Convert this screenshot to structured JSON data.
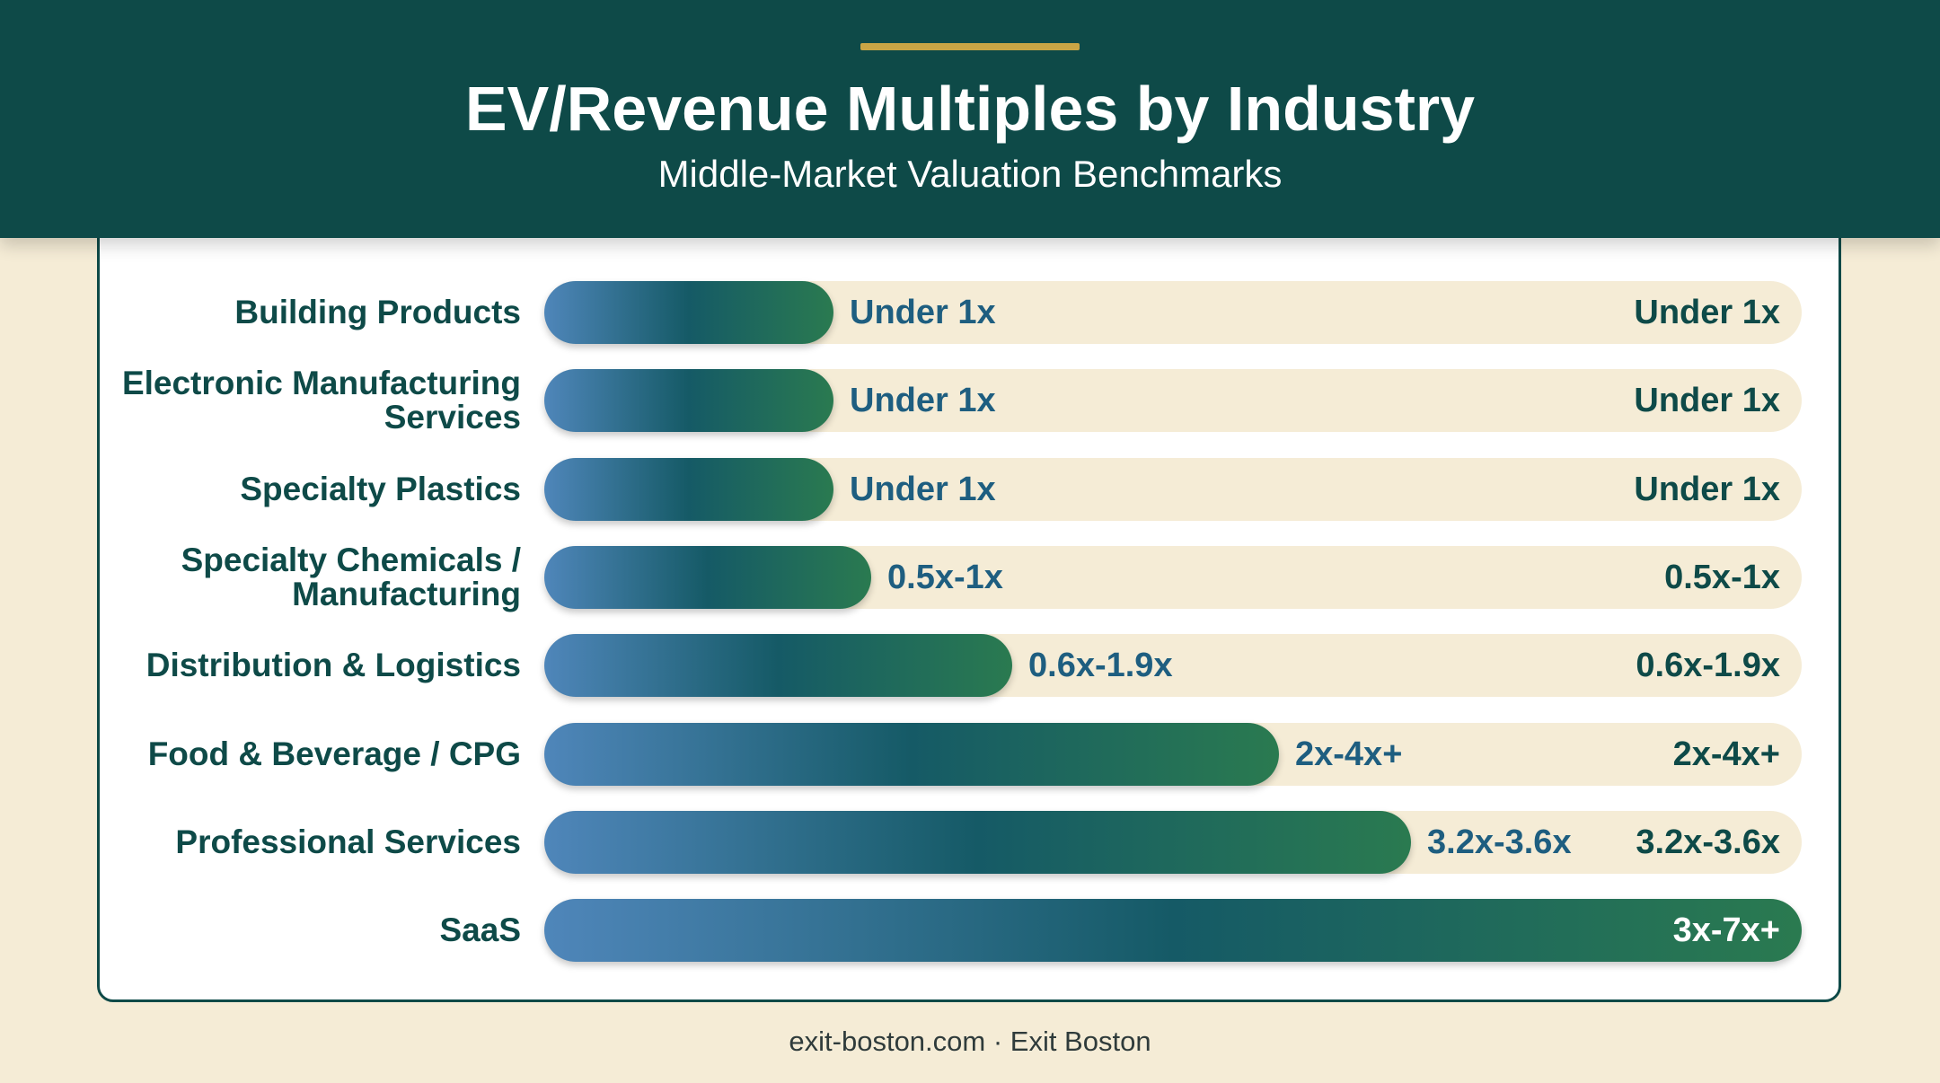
{
  "header": {
    "title": "EV/Revenue Multiples by Industry",
    "subtitle": "Middle-Market Valuation Benchmarks"
  },
  "colors": {
    "header_bg": "#0e4a48",
    "accent": "#c9a545",
    "background": "#f5ecd6",
    "bar_gradient": [
      "#4f86ba",
      "#155a66",
      "#2a7a50"
    ]
  },
  "chart_data": {
    "type": "bar",
    "orientation": "horizontal",
    "title": "EV/Revenue Multiples by Industry",
    "subtitle": "Middle-Market Valuation Benchmarks",
    "categories": [
      "Building Products",
      "Electronic Manufacturing Services",
      "Specialty Plastics",
      "Specialty Chemicals / Manufacturing",
      "Distribution & Logistics",
      "Food & Beverage / CPG",
      "Professional Services",
      "SaaS"
    ],
    "rows": [
      {
        "label": "Building Products",
        "display_label": [
          "Building Products"
        ],
        "range": "Under 1x",
        "fill_fraction": 0.23
      },
      {
        "label": "Electronic Manufacturing Services",
        "display_label": [
          "Electronic Manufacturing",
          "Services"
        ],
        "range": "Under 1x",
        "fill_fraction": 0.23
      },
      {
        "label": "Specialty Plastics",
        "display_label": [
          "Specialty Plastics"
        ],
        "range": "Under 1x",
        "fill_fraction": 0.23
      },
      {
        "label": "Specialty Chemicals / Manufacturing",
        "display_label": [
          "Specialty Chemicals /",
          "Manufacturing"
        ],
        "range": "0.5x-1x",
        "fill_fraction": 0.26
      },
      {
        "label": "Distribution & Logistics",
        "display_label": [
          "Distribution & Logistics"
        ],
        "range": "0.6x-1.9x",
        "fill_fraction": 0.372
      },
      {
        "label": "Food & Beverage / CPG",
        "display_label": [
          "Food & Beverage / CPG"
        ],
        "range": "2x-4x+",
        "fill_fraction": 0.584
      },
      {
        "label": "Professional Services",
        "display_label": [
          "Professional Services"
        ],
        "range": "3.2x-3.6x",
        "fill_fraction": 0.689
      },
      {
        "label": "SaaS",
        "display_label": [
          "SaaS"
        ],
        "range": "3x-7x+",
        "fill_fraction": 1.0
      }
    ],
    "xlabel": "",
    "ylabel": "",
    "grid": false,
    "legend": "none"
  },
  "footer": {
    "text": "exit-boston.com · Exit Boston"
  }
}
